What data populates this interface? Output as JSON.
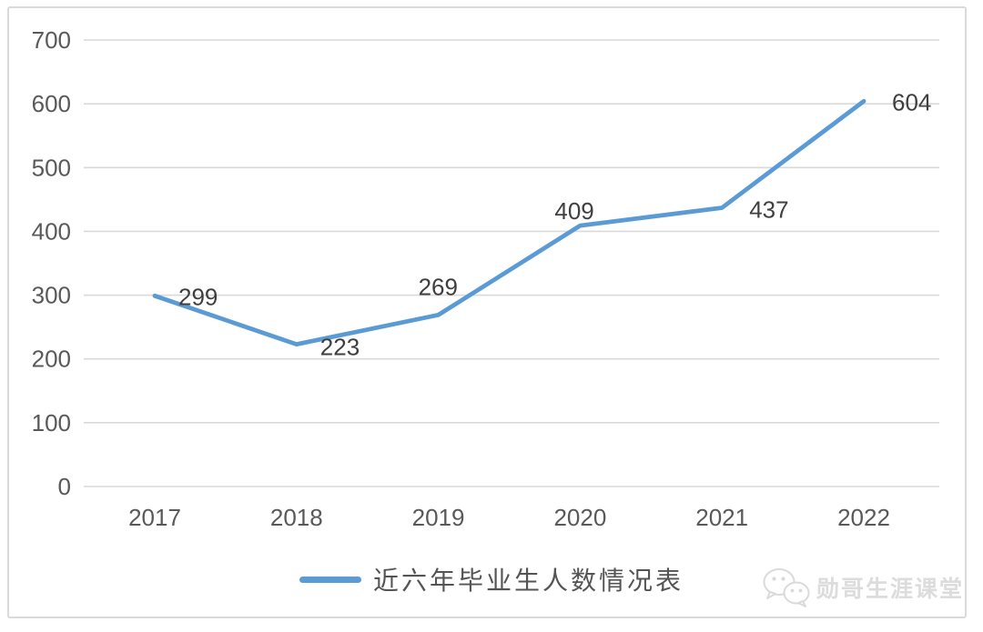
{
  "chart_data": {
    "type": "line",
    "categories": [
      "2017",
      "2018",
      "2019",
      "2020",
      "2021",
      "2022"
    ],
    "series": [
      {
        "name": "近六年毕业生人数情况表",
        "values": [
          299,
          223,
          269,
          409,
          437,
          604
        ],
        "color": "#5b9bd5"
      }
    ],
    "data_labels": [
      "299",
      "223",
      "269",
      "409",
      "437",
      "604"
    ],
    "xlabel": "",
    "ylabel": "",
    "ylim": [
      0,
      700
    ],
    "ytick_interval": 100,
    "yticks": [
      "0",
      "100",
      "200",
      "300",
      "400",
      "500",
      "600",
      "700"
    ],
    "grid": true,
    "gridline_color": "#d9d9d9",
    "axis_label_color": "#595959",
    "data_label_color": "#3f3f3f",
    "legend_position": "bottom"
  },
  "legend": {
    "label": "近六年毕业生人数情况表",
    "line_color": "#5b9bd5"
  },
  "watermark": {
    "text": "勋哥生涯课堂",
    "icon": "wechat-icon",
    "color": "#dcdcdc"
  },
  "frame": {
    "border_color": "#dadada",
    "background": "#ffffff"
  }
}
